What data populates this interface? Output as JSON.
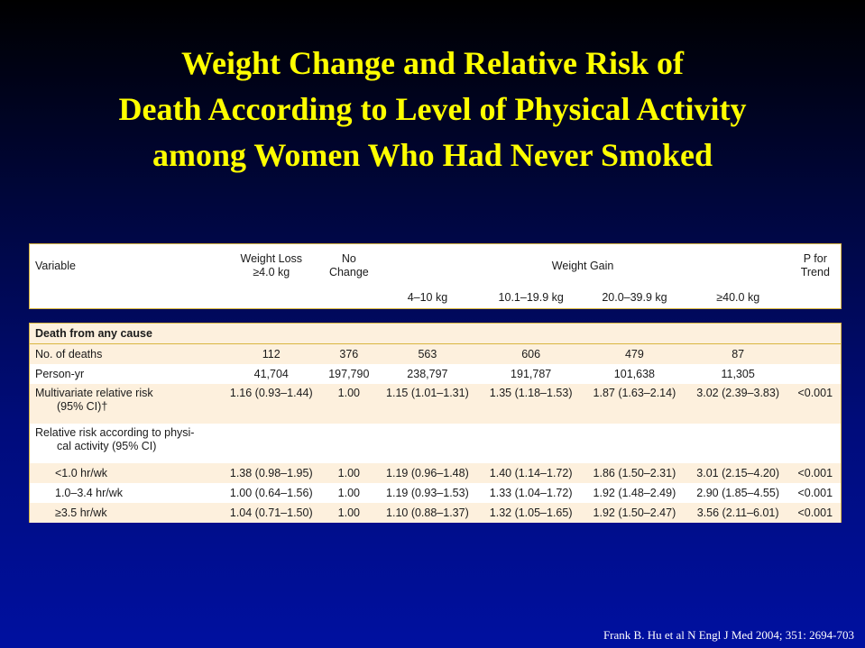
{
  "title_lines": [
    "Weight Change and Relative Risk of",
    "Death According to Level of Physical Activity",
    "among Women Who Had Never Smoked"
  ],
  "header": {
    "variable": "Variable",
    "weight_loss": "Weight Loss",
    "weight_loss_sub": "≥4.0 kg",
    "no": "No",
    "change": "Change",
    "weight_gain": "Weight Gain",
    "p_for": "P for",
    "trend": "Trend",
    "gain_cols": [
      "4–10 kg",
      "10.1–19.9 kg",
      "20.0–39.9 kg",
      "≥40.0 kg"
    ]
  },
  "section": "Death from any cause",
  "rows": {
    "deaths": {
      "label": "No. of deaths",
      "values": [
        "112",
        "376",
        "563",
        "606",
        "479",
        "87",
        ""
      ]
    },
    "person_yr": {
      "label": "Person-yr",
      "values": [
        "41,704",
        "197,790",
        "238,797",
        "191,787",
        "101,638",
        "11,305",
        ""
      ]
    },
    "multivariate": {
      "label1": "Multivariate relative risk",
      "label2": "(95% CI)†",
      "values": [
        "1.16 (0.93–1.44)",
        "1.00",
        "1.15 (1.01–1.31)",
        "1.35 (1.18–1.53)",
        "1.87 (1.63–2.14)",
        "3.02 (2.39–3.83)",
        "<0.001"
      ]
    },
    "rr_activity": {
      "label1": "Relative risk according to physi-",
      "label2": "cal activity (95% CI)"
    },
    "lt1": {
      "label": "<1.0 hr/wk",
      "values": [
        "1.38 (0.98–1.95)",
        "1.00",
        "1.19 (0.96–1.48)",
        "1.40 (1.14–1.72)",
        "1.86 (1.50–2.31)",
        "3.01 (2.15–4.20)",
        "<0.001"
      ]
    },
    "mid": {
      "label": "1.0–3.4 hr/wk",
      "values": [
        "1.00 (0.64–1.56)",
        "1.00",
        "1.19 (0.93–1.53)",
        "1.33 (1.04–1.72)",
        "1.92 (1.48–2.49)",
        "2.90 (1.85–4.55)",
        "<0.001"
      ]
    },
    "gt35": {
      "label": "≥3.5 hr/wk",
      "values": [
        "1.04 (0.71–1.50)",
        "1.00",
        "1.10 (0.88–1.37)",
        "1.32 (1.05–1.65)",
        "1.92 (1.50–2.47)",
        "3.56 (2.11–6.01)",
        "<0.001"
      ]
    }
  },
  "citation": "Frank B. Hu et al N Engl J Med 2004; 351: 2694-703"
}
